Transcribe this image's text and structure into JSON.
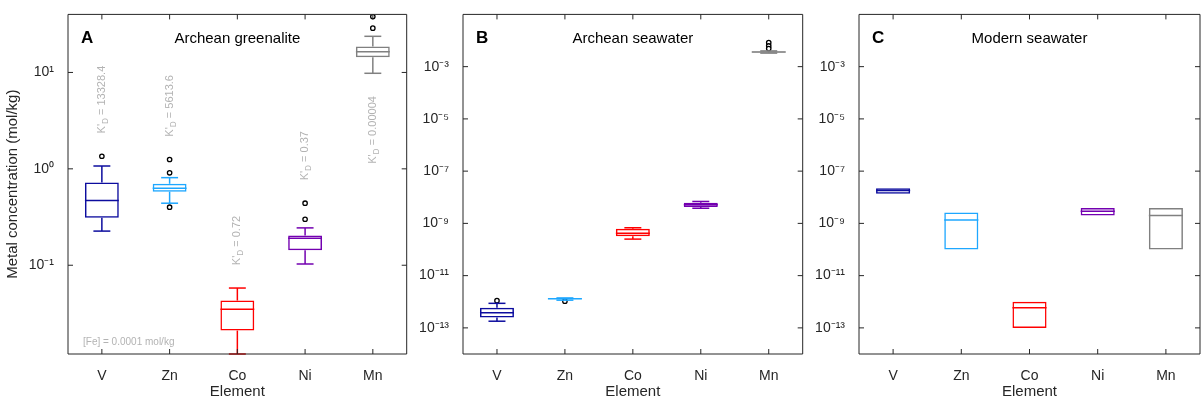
{
  "chart_data": [
    {
      "type": "box",
      "title": "Archean greenalite",
      "xlabel": "Element",
      "ylabel": "Metal concentration (mol/kg)",
      "log": true,
      "categories": [
        "V",
        "Zn",
        "Co",
        "Ni",
        "Mn"
      ],
      "colors": [
        "#0c0c9e",
        "#1ea7ff",
        "#ff0000",
        "#7300b0",
        "#808080"
      ],
      "boxes": [
        {
          "low": 0.226,
          "q1": 0.31,
          "median": 0.47,
          "q3": 0.72,
          "high": 1.07,
          "outliers": [
            1.35
          ]
        },
        {
          "low": 0.44,
          "q1": 0.58,
          "median": 0.63,
          "q3": 0.7,
          "high": 0.81,
          "outliers": [
            1.25,
            0.91,
            0.4
          ]
        },
        {
          "low": 0.012,
          "q1": 0.021,
          "median": 0.035,
          "q3": 0.043,
          "high": 0.058
        },
        {
          "low": 0.103,
          "q1": 0.143,
          "median": 0.19,
          "q3": 0.204,
          "high": 0.244,
          "outliers": [
            0.44,
            0.3
          ]
        },
        {
          "low": 9.8,
          "q1": 14.4,
          "median": 16.4,
          "q3": 18.6,
          "high": 23.7,
          "outliers": [
            28.8,
            38
          ]
        }
      ],
      "ylim": [
        0.012,
        40
      ],
      "yticks": [
        {
          "value": 0.1,
          "label": "10⁻¹"
        },
        {
          "value": 1,
          "label": "10⁰"
        },
        {
          "value": 10,
          "label": "10¹"
        }
      ],
      "annotations": [
        "A",
        "[Fe] = 0.0001 mol/kg",
        "K'$_{D}$ = 13328.4",
        "K'$_{D}$ = 5613.6",
        "K'$_{D}$ = 0.72",
        "K'$_{D}$ = 0.37",
        "K'$_{D}$ = 0.00004"
      ]
    },
    {
      "type": "box",
      "title": "Archean seawater",
      "xlabel": "Element",
      "log": true,
      "categories": [
        "V",
        "Zn",
        "Co",
        "Ni",
        "Mn"
      ],
      "colors": [
        "#0c0c9e",
        "#1ea7ff",
        "#ff0000",
        "#7300b0",
        "#808080"
      ],
      "boxes": [
        {
          "low": 1.8e-13,
          "q1": 2.5e-13,
          "median": 3.8e-13,
          "q3": 5.9e-13,
          "high": 8.7e-13,
          "outliers": [
            1.1e-12
          ]
        },
        {
          "low": 1.15e-12,
          "q1": 1.25e-12,
          "median": 1.3e-12,
          "q3": 1.35e-12,
          "high": 1.4e-12,
          "outliers": [
            1.05e-12
          ]
        },
        {
          "low": 2.5e-10,
          "q1": 3.2e-10,
          "median": 4.2e-10,
          "q3": 6.2e-10,
          "high": 6.8e-10
        },
        {
          "low": 3.8e-09,
          "q1": 4.2e-09,
          "median": 5.2e-09,
          "q3": 6.2e-09,
          "high": 6.9e-09
        },
        {
          "low": 0.0033,
          "q1": 0.0035,
          "median": 0.0036,
          "q3": 0.0038,
          "high": 0.004,
          "outliers": [
            0.0083,
            0.0062,
            0.0049
          ]
        }
      ],
      "ylim": [
        1e-14,
        0.1
      ],
      "yticks": [
        {
          "value": 1e-13,
          "label": "10⁻¹³"
        },
        {
          "value": 1e-11,
          "label": "10⁻¹¹"
        },
        {
          "value": 1e-09,
          "label": "10⁻⁹"
        },
        {
          "value": 1e-07,
          "label": "10⁻⁷"
        },
        {
          "value": 1e-05,
          "label": "10⁻⁵"
        },
        {
          "value": 0.001,
          "label": "10⁻³"
        }
      ],
      "annotations": [
        "B"
      ]
    },
    {
      "type": "box",
      "title": "Modern seawater",
      "xlabel": "Element",
      "log": true,
      "categories": [
        "V",
        "Zn",
        "Co",
        "Ni",
        "Mn"
      ],
      "colors": [
        "#0c0c9e",
        "#1ea7ff",
        "#ff0000",
        "#7300b0",
        "#808080"
      ],
      "boxes": [
        {
          "low": 1.35e-08,
          "q1": 1.35e-08,
          "median": 1.8e-08,
          "q3": 2.2e-08,
          "high": 2.2e-08
        },
        {
          "low": 1e-10,
          "q1": 1e-10,
          "median": 1.35e-09,
          "q3": 2.6e-09,
          "high": 2.6e-09
        },
        {
          "low": 1e-13,
          "q1": 1e-13,
          "median": 5.9e-13,
          "q3": 1e-12,
          "high": 1e-12
        },
        {
          "low": 2e-09,
          "q1": 2e-09,
          "median": 2.9e-09,
          "q3": 3.9e-09,
          "high": 3.9e-09
        },
        {
          "low": 1e-10,
          "q1": 1e-10,
          "median": 2e-09,
          "q3": 3.9e-09,
          "high": 3.9e-09
        }
      ],
      "ylim": [
        1e-14,
        0.1
      ],
      "yticks": [
        {
          "value": 1e-13,
          "label": "10⁻¹³"
        },
        {
          "value": 1e-11,
          "label": "10⁻¹¹"
        },
        {
          "value": 1e-09,
          "label": "10⁻⁹"
        },
        {
          "value": 1e-07,
          "label": "10⁻⁷"
        },
        {
          "value": 1e-05,
          "label": "10⁻⁵"
        },
        {
          "value": 0.001,
          "label": "10⁻³"
        }
      ],
      "annotations": [
        "C"
      ]
    }
  ]
}
